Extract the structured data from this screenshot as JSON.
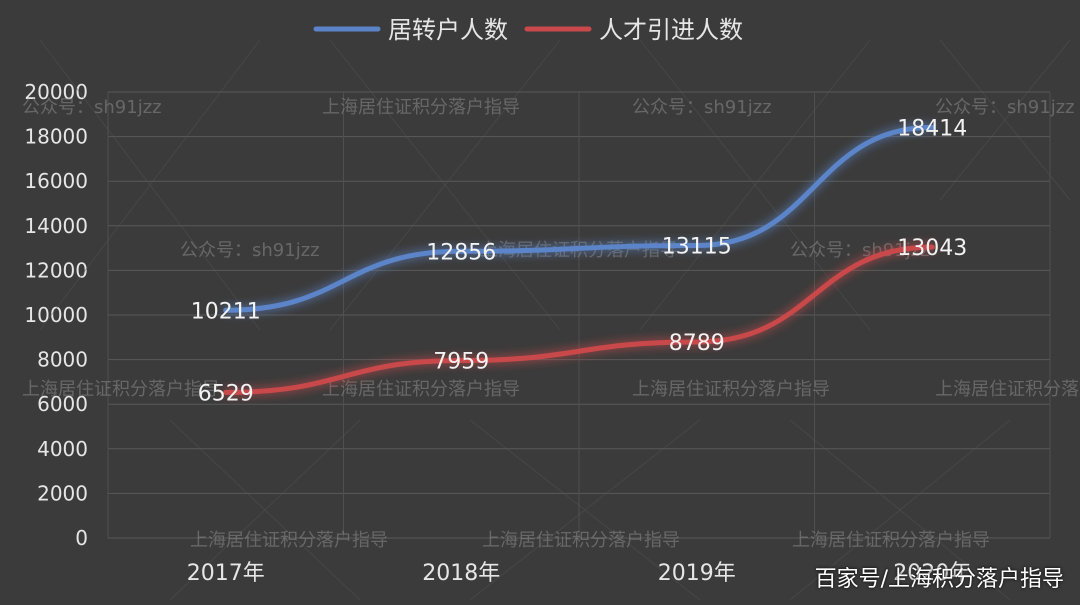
{
  "chart_data": {
    "type": "line",
    "categories": [
      "2017年",
      "2018年",
      "2019年",
      "2020年"
    ],
    "series": [
      {
        "name": "居转户人数",
        "values": [
          10211,
          12856,
          13115,
          18414
        ],
        "color": "#5b84c8"
      },
      {
        "name": "人才引进人数",
        "values": [
          6529,
          7959,
          8789,
          13043
        ],
        "color": "#c9484b"
      }
    ],
    "ylim": [
      0,
      20000
    ],
    "yticks": [
      0,
      2000,
      4000,
      6000,
      8000,
      10000,
      12000,
      14000,
      16000,
      18000,
      20000
    ],
    "grid": true,
    "legend": "top-center"
  },
  "watermarks": {
    "public_account": "公众号：sh91jzz",
    "guide": "上海居住证积分落户指导",
    "footer": "百家号/上海积分落户指导"
  }
}
